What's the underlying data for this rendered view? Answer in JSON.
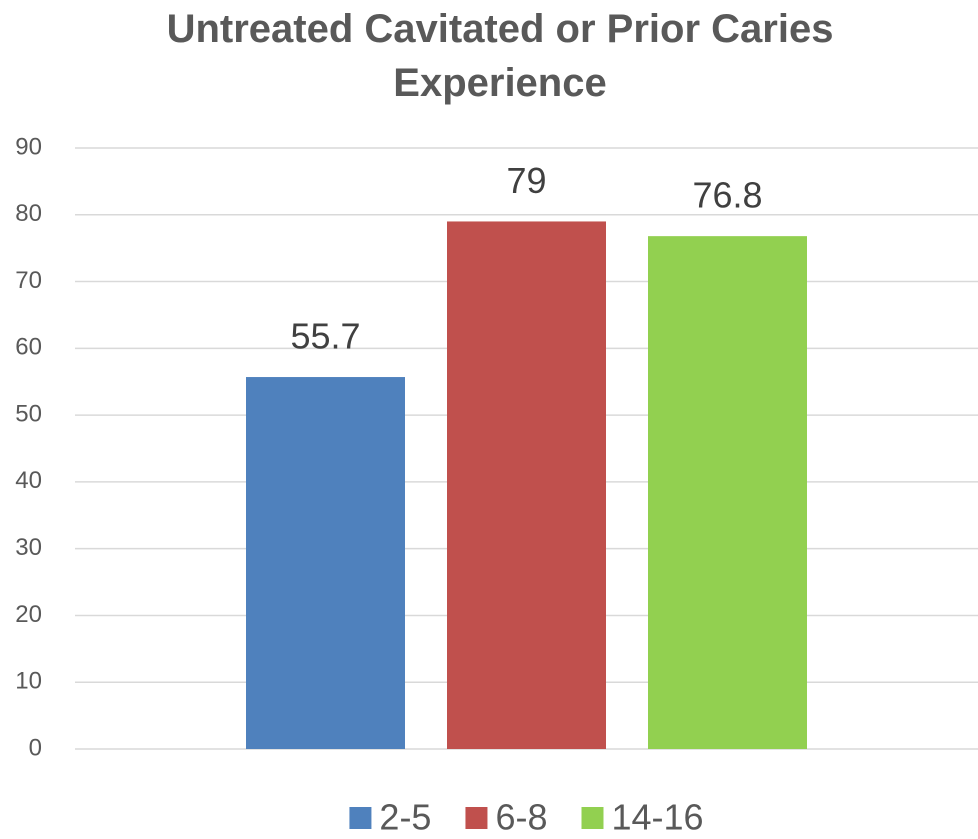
{
  "chart_data": {
    "type": "bar",
    "title": "Untreated Cavitated or Prior Caries Experience",
    "categories": [
      null
    ],
    "series": [
      {
        "name": "2-5",
        "color": "#4f81bd",
        "values": [
          55.7
        ]
      },
      {
        "name": "6-8",
        "color": "#c0504d",
        "values": [
          79
        ]
      },
      {
        "name": "14-16",
        "color": "#92d050",
        "values": [
          76.8
        ]
      }
    ],
    "ylim": [
      0,
      90
    ],
    "yticks": [
      0,
      10,
      20,
      30,
      40,
      50,
      60,
      70,
      80,
      90
    ],
    "grid": true,
    "legend": "bottom"
  }
}
